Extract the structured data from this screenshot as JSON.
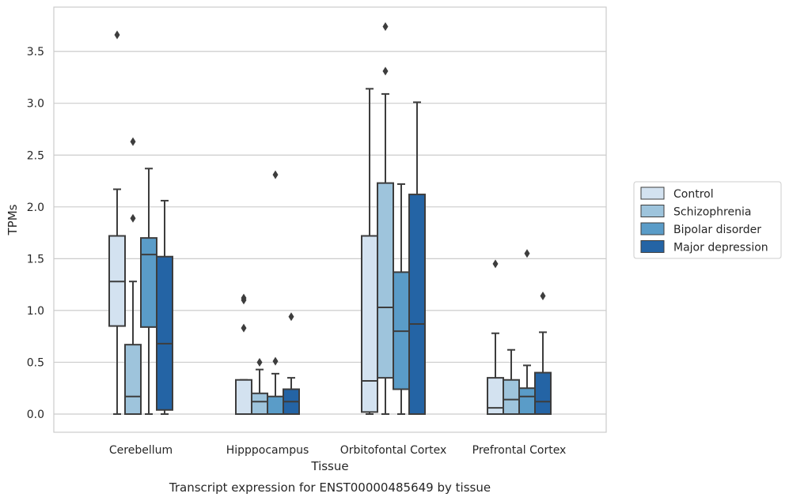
{
  "chart_data": {
    "type": "boxplot",
    "title": "",
    "caption": "Transcript expression for ENST00000485649 by tissue",
    "xlabel": "Tissue",
    "ylabel": "TPMs",
    "ylim": [
      -0.18,
      3.9
    ],
    "yticks": [
      0.0,
      0.5,
      1.0,
      1.5,
      2.0,
      2.5,
      3.0,
      3.5
    ],
    "ytick_labels": [
      "0.0",
      "0.5",
      "1.0",
      "1.5",
      "2.0",
      "2.5",
      "3.0",
      "3.5"
    ],
    "grid": "horizontal",
    "legend_position": "right",
    "categories": [
      "Cerebellum",
      "Hipppocampus",
      "Orbitofontal Cortex",
      "Prefrontal Cortex"
    ],
    "series": [
      {
        "name": "Control",
        "color": "#d3e2f0",
        "boxes": [
          {
            "whislo": 0.0,
            "q1": 0.85,
            "med": 1.28,
            "q3": 1.72,
            "whishi": 2.17,
            "fliers": [
              3.66
            ]
          },
          {
            "whislo": 0.0,
            "q1": 0.0,
            "med": 0.0,
            "q3": 0.33,
            "whishi": 0.33,
            "fliers": [
              0.83,
              1.1,
              1.12
            ]
          },
          {
            "whislo": 0.0,
            "q1": 0.02,
            "med": 0.32,
            "q3": 1.72,
            "whishi": 3.14,
            "fliers": []
          },
          {
            "whislo": 0.0,
            "q1": 0.0,
            "med": 0.06,
            "q3": 0.35,
            "whishi": 0.78,
            "fliers": [
              1.45
            ]
          }
        ]
      },
      {
        "name": "Schizophrenia",
        "color": "#9ec4dc",
        "boxes": [
          {
            "whislo": 0.0,
            "q1": 0.0,
            "med": 0.17,
            "q3": 0.67,
            "whishi": 1.28,
            "fliers": [
              1.89,
              2.63
            ]
          },
          {
            "whislo": 0.0,
            "q1": 0.0,
            "med": 0.12,
            "q3": 0.2,
            "whishi": 0.43,
            "fliers": [
              0.5
            ]
          },
          {
            "whislo": 0.0,
            "q1": 0.35,
            "med": 1.03,
            "q3": 2.23,
            "whishi": 3.09,
            "fliers": [
              3.31,
              3.74
            ]
          },
          {
            "whislo": 0.0,
            "q1": 0.0,
            "med": 0.14,
            "q3": 0.33,
            "whishi": 0.62,
            "fliers": []
          }
        ]
      },
      {
        "name": "Bipolar disorder",
        "color": "#5a9cc8",
        "boxes": [
          {
            "whislo": 0.0,
            "q1": 0.84,
            "med": 1.54,
            "q3": 1.7,
            "whishi": 2.37,
            "fliers": []
          },
          {
            "whislo": 0.0,
            "q1": 0.0,
            "med": 0.0,
            "q3": 0.17,
            "whishi": 0.39,
            "fliers": [
              0.51,
              2.31
            ]
          },
          {
            "whislo": 0.0,
            "q1": 0.24,
            "med": 0.8,
            "q3": 1.37,
            "whishi": 2.22,
            "fliers": []
          },
          {
            "whislo": 0.0,
            "q1": 0.0,
            "med": 0.17,
            "q3": 0.25,
            "whishi": 0.47,
            "fliers": [
              1.55
            ]
          }
        ]
      },
      {
        "name": "Major depression",
        "color": "#2464a5",
        "boxes": [
          {
            "whislo": 0.0,
            "q1": 0.04,
            "med": 0.68,
            "q3": 1.52,
            "whishi": 2.06,
            "fliers": []
          },
          {
            "whislo": 0.0,
            "q1": 0.0,
            "med": 0.12,
            "q3": 0.24,
            "whishi": 0.35,
            "fliers": [
              0.94
            ]
          },
          {
            "whislo": 0.0,
            "q1": 0.0,
            "med": 0.87,
            "q3": 2.12,
            "whishi": 3.01,
            "fliers": []
          },
          {
            "whislo": 0.0,
            "q1": 0.0,
            "med": 0.12,
            "q3": 0.4,
            "whishi": 0.79,
            "fliers": [
              1.14
            ]
          }
        ]
      }
    ]
  }
}
